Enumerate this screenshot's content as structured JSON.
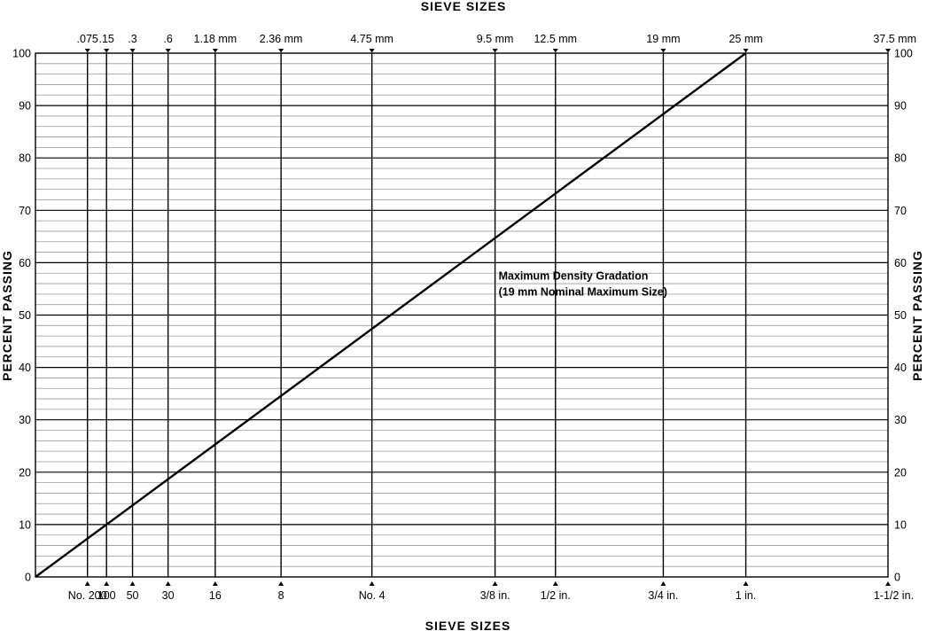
{
  "chart_data": {
    "type": "line",
    "title": "",
    "top_axis_title": "SIEVE SIZES",
    "xlabel": "SIEVE SIZES",
    "ylabel": "PERCENT PASSING",
    "x_scale": "0.45 power",
    "ylim": [
      0,
      100
    ],
    "xlim_mm": [
      0,
      37.5
    ],
    "grid": true,
    "y_major_ticks": [
      "0",
      "10",
      "20",
      "30",
      "40",
      "50",
      "60",
      "70",
      "80",
      "90",
      "100"
    ],
    "sieves": [
      {
        "size_mm": 0.075,
        "top_label": ".075",
        "bottom_label": "No. 200"
      },
      {
        "size_mm": 0.15,
        "top_label": ".15",
        "bottom_label": "100"
      },
      {
        "size_mm": 0.3,
        "top_label": ".3",
        "bottom_label": "50"
      },
      {
        "size_mm": 0.6,
        "top_label": ".6",
        "bottom_label": "30"
      },
      {
        "size_mm": 1.18,
        "top_label": "1.18 mm",
        "bottom_label": "16"
      },
      {
        "size_mm": 2.36,
        "top_label": "2.36 mm",
        "bottom_label": "8"
      },
      {
        "size_mm": 4.75,
        "top_label": "4.75 mm",
        "bottom_label": "No. 4"
      },
      {
        "size_mm": 9.5,
        "top_label": "9.5 mm",
        "bottom_label": "3/8 in."
      },
      {
        "size_mm": 12.5,
        "top_label": "12.5 mm",
        "bottom_label": "1/2 in."
      },
      {
        "size_mm": 19,
        "top_label": "19 mm",
        "bottom_label": "3/4 in."
      },
      {
        "size_mm": 25,
        "top_label": "25 mm",
        "bottom_label": "1 in."
      },
      {
        "size_mm": 37.5,
        "top_label": "37.5 mm",
        "bottom_label": "1-1/2 in."
      }
    ],
    "series": [
      {
        "points": [
          {
            "x": 0,
            "y": 0
          },
          {
            "x": 25,
            "y": 100
          }
        ]
      }
    ],
    "annotation": {
      "lines": [
        "Maximum Density Gradation",
        "(19 mm Nominal Maximum Size)"
      ],
      "at": {
        "x": 9.5,
        "y": 60
      }
    }
  }
}
